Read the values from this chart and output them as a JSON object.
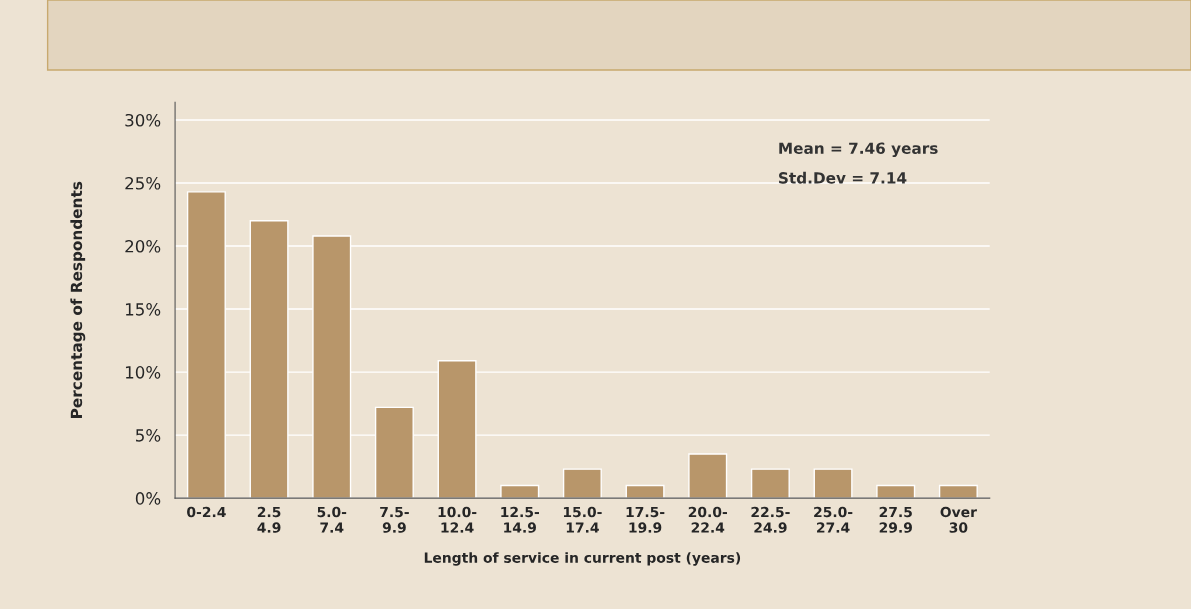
{
  "chart_data": {
    "type": "bar",
    "xlabel": "Length of service in current post (years)",
    "ylabel": "Percentage of Respondents",
    "categories": [
      "0-2.4",
      "2.5\n4.9",
      "5.0-\n7.4",
      "7.5-\n9.9",
      "10.0-\n12.4",
      "12.5-\n14.9",
      "15.0-\n17.4",
      "17.5-\n19.9",
      "20.0-\n22.4",
      "22.5-\n24.9",
      "25.0-\n27.4",
      "27.5\n29.9",
      "Over\n30"
    ],
    "values": [
      24.3,
      22.0,
      20.8,
      7.2,
      10.9,
      1.0,
      2.3,
      1.0,
      3.5,
      2.3,
      2.3,
      1.0,
      1.0
    ],
    "color": "#b8966a",
    "ylim": [
      0,
      31.4
    ],
    "yticks": [
      {
        "value": 0,
        "label": "0%"
      },
      {
        "value": 5,
        "label": "5%"
      },
      {
        "value": 10,
        "label": "10%"
      },
      {
        "value": 15,
        "label": "15%"
      },
      {
        "value": 20,
        "label": "20%"
      },
      {
        "value": 25,
        "label": "25%"
      },
      {
        "value": 30,
        "label": "30%"
      }
    ],
    "grid": "y",
    "annotations": [
      "Mean = 7.46 years",
      "Std.Dev = 7.14"
    ]
  }
}
